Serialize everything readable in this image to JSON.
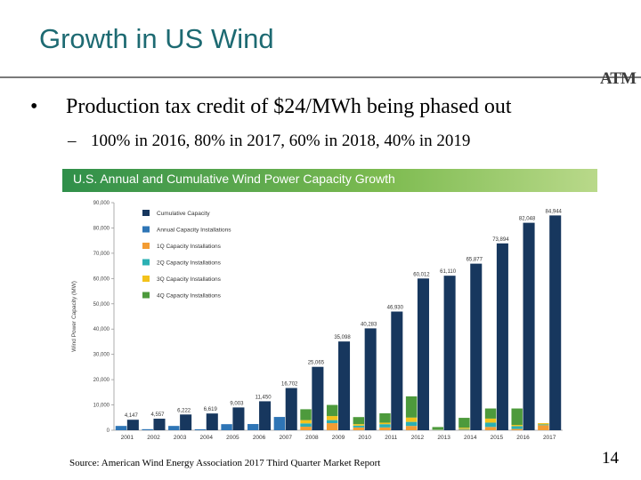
{
  "slide": {
    "title": "Growth in US Wind",
    "logo_text": "ATM",
    "bullet": "Production tax credit of $24/MWh being phased  out",
    "bullet_marker": "•",
    "sub_marker": "–",
    "sub_bullet": "100% in 2016, 80% in 2017, 60% in 2018, 40% in 2019",
    "source": "Source: American Wind Energy Association 2017 Third Quarter Market Report",
    "page_number": "14"
  },
  "colors": {
    "cumulative": "#17375e",
    "annual": "#2e75b6",
    "q1": "#f39c33",
    "q2": "#2bb0b3",
    "q3": "#f3c21b",
    "q4": "#4d9a3c"
  },
  "chart_data": {
    "type": "bar",
    "title": "U.S. Annual and Cumulative Wind Power Capacity Growth",
    "ylabel": "Wind Power Capacity (MW)",
    "xlabel": "",
    "ylim": [
      0,
      90000
    ],
    "yticks": [
      0,
      10000,
      20000,
      30000,
      40000,
      50000,
      60000,
      70000,
      80000,
      90000
    ],
    "ytick_labels": [
      "0",
      "10,000",
      "20,000",
      "30,000",
      "40,000",
      "50,000",
      "60,000",
      "70,000",
      "80,000",
      "90,000"
    ],
    "categories": [
      "2001",
      "2002",
      "2003",
      "2004",
      "2005",
      "2006",
      "2007",
      "2008",
      "2009",
      "2010",
      "2011",
      "2012",
      "2013",
      "2014",
      "2015",
      "2016",
      "2017"
    ],
    "legend_position": "top-left",
    "grid": false,
    "series": [
      {
        "name": "Cumulative Capacity",
        "values": [
          4147,
          4557,
          6222,
          6619,
          9003,
          11450,
          16702,
          25065,
          35098,
          40283,
          46930,
          60012,
          61110,
          65877,
          73894,
          82048,
          84944
        ],
        "labels": [
          "4,147",
          "4,557",
          "6,222",
          "6,619",
          "9,003",
          "11,450",
          "16,702",
          "25,065",
          "35,098",
          "40,283",
          "46,930",
          "60,012",
          "61,110",
          "65,877",
          "73,894",
          "82,048",
          "84,944"
        ]
      },
      {
        "name": "Annual Capacity Installations",
        "values": [
          1700,
          410,
          1700,
          390,
          2400,
          2450,
          5250,
          null,
          null,
          null,
          null,
          null,
          null,
          null,
          null,
          null,
          null
        ]
      },
      {
        "name": "1Q Capacity Installations",
        "values": [
          null,
          null,
          null,
          null,
          null,
          null,
          null,
          1400,
          2800,
          1100,
          1100,
          1700,
          60,
          200,
          1300,
          500,
          2000
        ]
      },
      {
        "name": "2Q Capacity Installations",
        "values": [
          null,
          null,
          null,
          null,
          null,
          null,
          null,
          1300,
          1200,
          700,
          1300,
          1600,
          100,
          300,
          1700,
          1100,
          300
        ]
      },
      {
        "name": "3Q Capacity Installations",
        "values": [
          null,
          null,
          null,
          null,
          null,
          null,
          null,
          1300,
          1600,
          600,
          600,
          1700,
          100,
          500,
          1600,
          500,
          500
        ]
      },
      {
        "name": "4Q Capacity Installations",
        "values": [
          null,
          null,
          null,
          null,
          null,
          null,
          null,
          4300,
          4400,
          2800,
          3700,
          8400,
          1000,
          3900,
          4000,
          6500,
          null
        ]
      }
    ]
  }
}
